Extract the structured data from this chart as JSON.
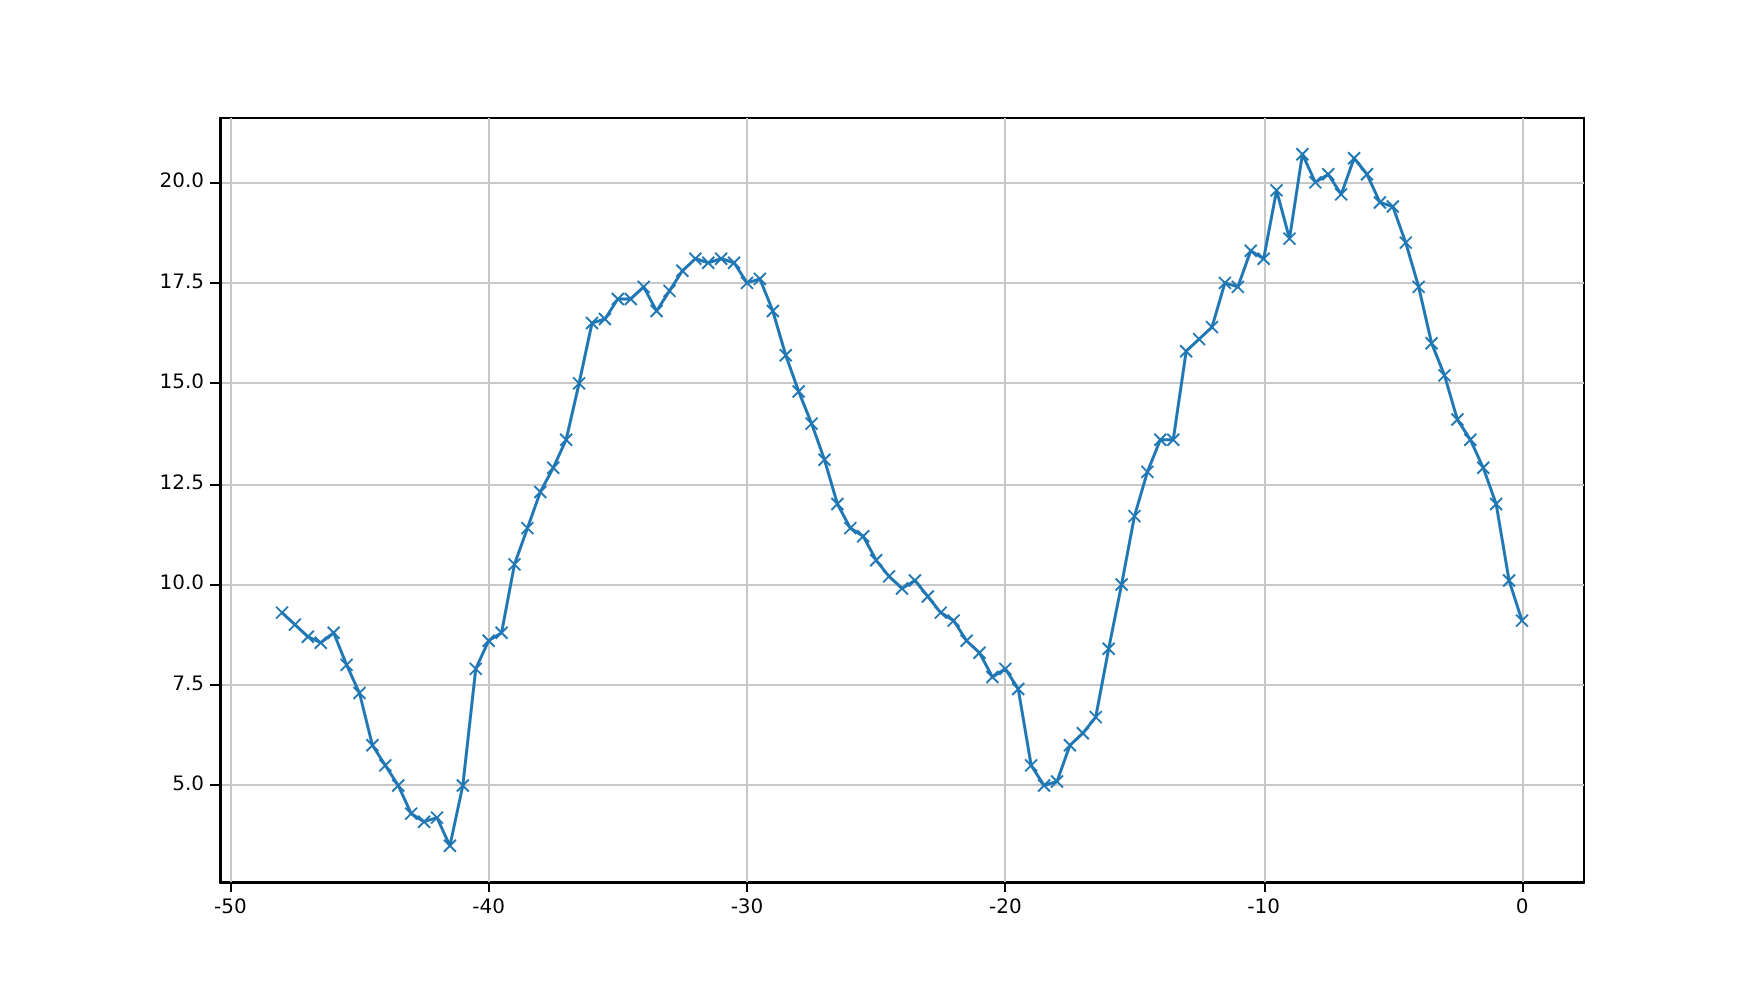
{
  "chart_data": {
    "type": "line",
    "marker": "cross",
    "grid": true,
    "x": [
      -48,
      -47.5,
      -47,
      -46.5,
      -46,
      -45.5,
      -45,
      -44.5,
      -44,
      -43.5,
      -43,
      -42.5,
      -42,
      -41.5,
      -41,
      -40.5,
      -40,
      -39.5,
      -39,
      -38.5,
      -38,
      -37.5,
      -37,
      -36.5,
      -36,
      -35.5,
      -35,
      -34.5,
      -34,
      -33.5,
      -33,
      -32.5,
      -32,
      -31.5,
      -31,
      -30.5,
      -30,
      -29.5,
      -29,
      -28.5,
      -28,
      -27.5,
      -27,
      -26.5,
      -26,
      -25.5,
      -25,
      -24.5,
      -24,
      -23.5,
      -23,
      -22.5,
      -22,
      -21.5,
      -21,
      -20.5,
      -20,
      -19.5,
      -19,
      -18.5,
      -18,
      -17.5,
      -17,
      -16.5,
      -16,
      -15.5,
      -15,
      -14.5,
      -14,
      -13.5,
      -13,
      -12.5,
      -12,
      -11.5,
      -11,
      -10.5,
      -10,
      -9.5,
      -9,
      -8.5,
      -8,
      -7.5,
      -7,
      -6.5,
      -6,
      -5.5,
      -5,
      -4.5,
      -4,
      -3.5,
      -3,
      -2.5,
      -2,
      -1.5,
      -1,
      -0.5,
      0
    ],
    "series": [
      {
        "color": "#1f77b4",
        "values": [
          9.3,
          9.0,
          8.7,
          8.55,
          8.8,
          8.0,
          7.3,
          6.0,
          5.5,
          5.0,
          4.3,
          4.1,
          4.2,
          3.5,
          5.0,
          7.9,
          8.6,
          8.8,
          10.5,
          11.4,
          12.3,
          12.9,
          13.6,
          15.0,
          16.5,
          16.6,
          17.1,
          17.1,
          17.4,
          16.8,
          17.3,
          17.8,
          18.1,
          18.0,
          18.1,
          18.0,
          17.5,
          17.6,
          16.8,
          15.7,
          14.8,
          14.0,
          13.1,
          12.0,
          11.4,
          11.2,
          10.6,
          10.2,
          9.9,
          10.1,
          9.7,
          9.3,
          9.1,
          8.6,
          8.3,
          7.7,
          7.9,
          7.4,
          5.5,
          5.0,
          5.1,
          6.0,
          6.3,
          6.7,
          8.4,
          10.0,
          11.7,
          12.8,
          13.6,
          13.6,
          15.8,
          16.1,
          16.4,
          17.5,
          17.4,
          18.3,
          18.1,
          19.8,
          18.6,
          20.7,
          20.0,
          20.2,
          19.7,
          20.6,
          20.2,
          19.5,
          19.4,
          18.5,
          17.4,
          16.0,
          15.2,
          14.1,
          13.6,
          12.9,
          12.0,
          10.1,
          9.1
        ]
      }
    ],
    "xlim": [
      -50.4,
      2.4
    ],
    "xticks": [
      -50,
      -40,
      -30,
      -20,
      -10,
      0
    ],
    "ylim": [
      2.6,
      21.6
    ],
    "yticks": [
      {
        "value": 5,
        "label": "5.0"
      },
      {
        "value": 7.5,
        "label": "7.5"
      },
      {
        "value": 10,
        "label": "10.0"
      },
      {
        "value": 12.5,
        "label": "12.5"
      },
      {
        "value": 15,
        "label": "15.0"
      },
      {
        "value": 17.5,
        "label": "17.5"
      },
      {
        "value": 20,
        "label": "20.0"
      }
    ]
  }
}
